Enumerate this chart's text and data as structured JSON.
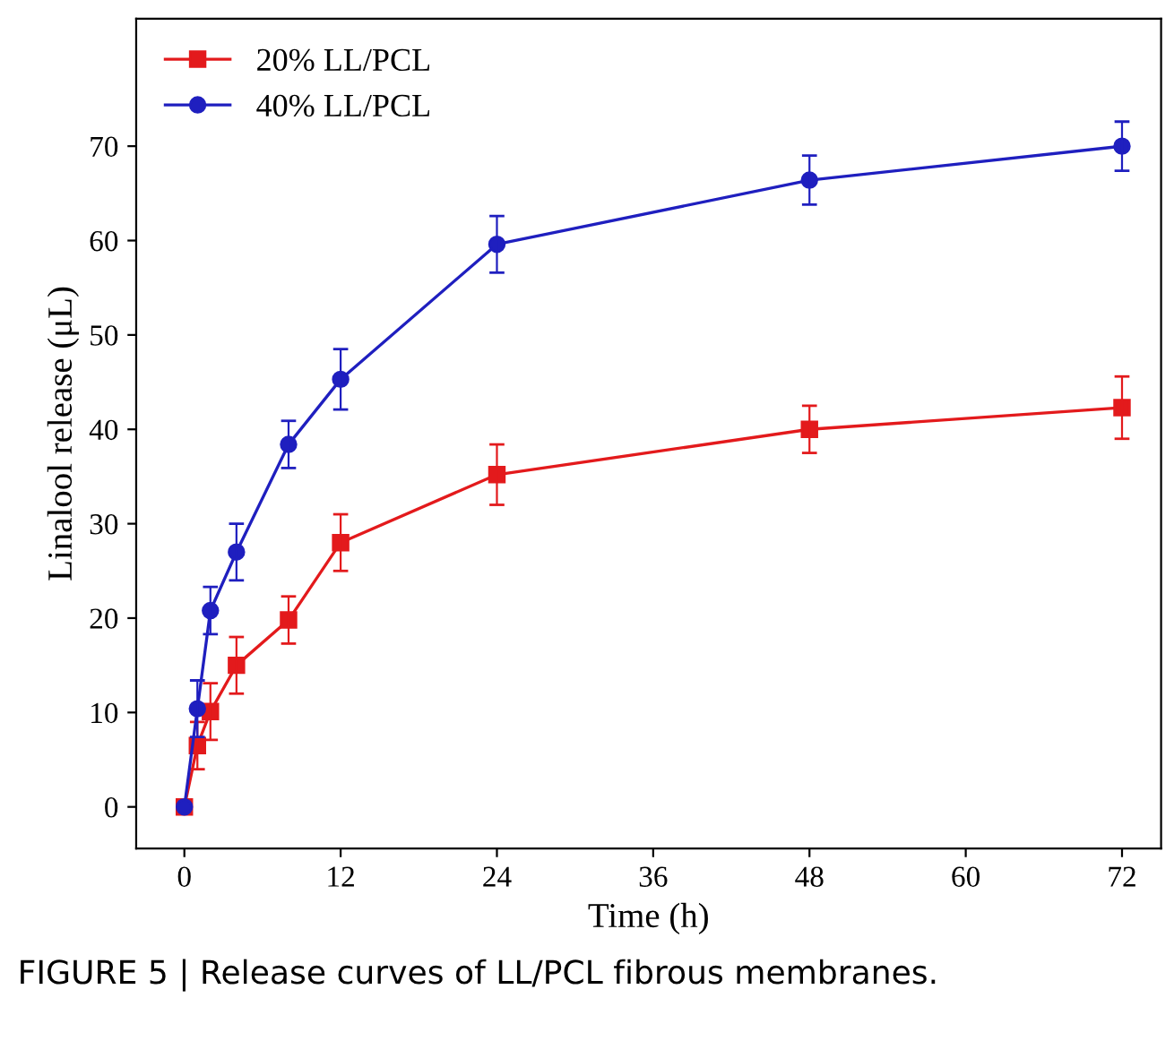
{
  "chart_data": {
    "type": "line",
    "xlabel": "Time (h)",
    "ylabel": "Linalool release (μL)",
    "x": [
      0,
      1,
      2,
      4,
      8,
      12,
      24,
      48,
      72
    ],
    "series": [
      {
        "name": "20% LL/PCL",
        "color": "#e31a1c",
        "marker": "square",
        "values": [
          0,
          6.5,
          10.1,
          15,
          19.8,
          28,
          35.2,
          40,
          42.3
        ],
        "errors": [
          null,
          2.5,
          3,
          3,
          2.5,
          3,
          3.2,
          2.5,
          3.3
        ]
      },
      {
        "name": "40% LL/PCL",
        "color": "#1f1fbf",
        "marker": "circle",
        "values": [
          0,
          10.4,
          20.8,
          27,
          38.4,
          45.3,
          59.6,
          66.4,
          70
        ],
        "errors": [
          null,
          3,
          2.5,
          3,
          2.5,
          3.2,
          3,
          2.6,
          2.6
        ]
      }
    ],
    "xlim": [
      -3.7,
      75
    ],
    "ylim": [
      -4.4,
      83.5
    ],
    "xticks": [
      0,
      12,
      24,
      36,
      48,
      60,
      72
    ],
    "yticks": [
      0,
      10,
      20,
      30,
      40,
      50,
      60,
      70
    ],
    "grid": false,
    "legend": "top left",
    "line_style": "solid",
    "annotations": [
      "FIGURE 5 | Release curves of LL/PCL fibrous membranes."
    ]
  }
}
